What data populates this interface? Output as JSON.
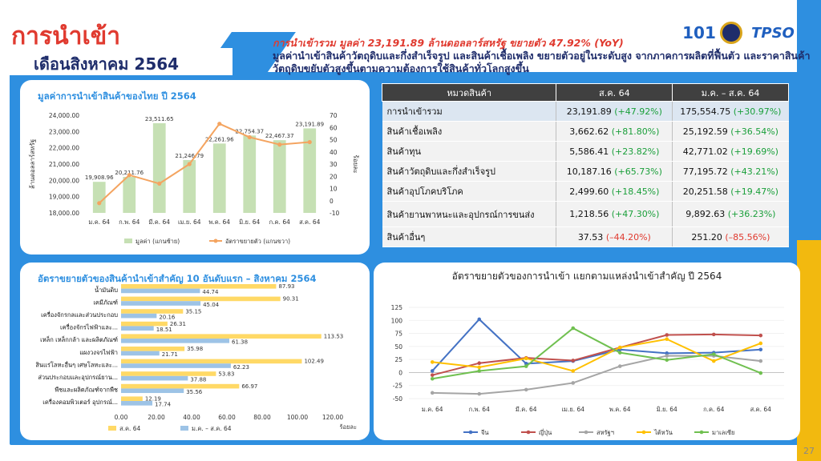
{
  "title": {
    "main": "การนำเข้า",
    "sub": "เดือนสิงหาคม 2564"
  },
  "header": {
    "highlight": "การนำเข้ารวม มูลค่า 23,191.89 ล้านดอลลาร์สหรัฐ ขยายตัว 47.92% (YoY)",
    "body": "มูลค่านำเข้าสินค้าวัตถุดิบและกึ่งสำเร็จรูป และสินค้าเชื้อเพลิง ขยายตัวอยู่ในระดับสูง จากภาคการผลิตที่ฟื้นตัว และราคาสินค้าวัตถุดิบขยับตัวสูงขึ้นตามความต้องการใช้สินค้าทั่วโลกสูงขึ้น"
  },
  "logos": [
    {
      "name": "101-logo",
      "text": "101"
    },
    {
      "name": "ministry-seal-logo",
      "text": ""
    },
    {
      "name": "tpso-logo",
      "text": "TPSO"
    }
  ],
  "page_number": "27",
  "colors": {
    "blue": "#2e8fe0",
    "yellow": "#f2b90f",
    "red": "#e03a2f",
    "navy": "#1f2d6b",
    "bar_green": "#c6e0b4",
    "line_orange": "#f4a460"
  },
  "table": {
    "headers": [
      "หมวดสินค้า",
      "ส.ค. 64",
      "ม.ค. – ส.ค. 64"
    ],
    "rows": [
      {
        "name": "การนำเข้ารวม",
        "aug_val": "23,191.89",
        "aug_chg": "(+47.92%)",
        "ytd_val": "175,554.75",
        "ytd_chg": "(+30.97%)",
        "aug_sign": "pos",
        "ytd_sign": "pos"
      },
      {
        "name": "สินค้าเชื้อเพลิง",
        "aug_val": "3,662.62",
        "aug_chg": "(+81.80%)",
        "ytd_val": "25,192.59",
        "ytd_chg": "(+36.54%)",
        "aug_sign": "pos",
        "ytd_sign": "pos"
      },
      {
        "name": "สินค้าทุน",
        "aug_val": "5,586.41",
        "aug_chg": "(+23.82%)",
        "ytd_val": "42,771.02",
        "ytd_chg": "(+19.69%)",
        "aug_sign": "pos",
        "ytd_sign": "pos"
      },
      {
        "name": "สินค้าวัตถุดิบและกึ่งสำเร็จรูป",
        "aug_val": "10,187.16",
        "aug_chg": "(+65.73%)",
        "ytd_val": "77,195.72",
        "ytd_chg": "(+43.21%)",
        "aug_sign": "pos",
        "ytd_sign": "pos"
      },
      {
        "name": "สินค้าอุปโภคบริโภค",
        "aug_val": "2,499.60",
        "aug_chg": "(+18.45%)",
        "ytd_val": "20,251.58",
        "ytd_chg": "(+19.47%)",
        "aug_sign": "pos",
        "ytd_sign": "pos"
      },
      {
        "name": "สินค้ายานพาหนะและอุปกรณ์การขนส่ง",
        "aug_val": "1,218.56",
        "aug_chg": "(+47.30%)",
        "ytd_val": "9,892.63",
        "ytd_chg": "(+36.23%)",
        "aug_sign": "pos",
        "ytd_sign": "pos"
      },
      {
        "name": "สินค้าอื่นๆ",
        "aug_val": "37.53",
        "aug_chg": "(–44.20%)",
        "ytd_val": "251.20",
        "ytd_chg": "(–85.56%)",
        "aug_sign": "neg",
        "ytd_sign": "neg"
      }
    ]
  },
  "chart_data": [
    {
      "type": "bar",
      "title": "มูลค่าการนำเข้าสินค้าของไทย ปี 2564",
      "categories": [
        "ม.ค. 64",
        "ก.พ. 64",
        "มี.ค. 64",
        "เม.ย. 64",
        "พ.ค. 64",
        "มิ.ย. 64",
        "ก.ค. 64",
        "ส.ค. 64"
      ],
      "series": [
        {
          "name": "มูลค่า (แกนซ้าย)",
          "values": [
            19908.96,
            20211.76,
            23511.65,
            21246.79,
            22261.96,
            22754.37,
            22467.37,
            23191.89
          ],
          "labels": [
            "19,908.96",
            "20,211.76",
            "23,511.65",
            "21,246.79",
            "22,261.96",
            "22,754.37",
            "22,467.37",
            "23,191.89"
          ]
        },
        {
          "name": "อัตราขยายตัว (แกนขวา)",
          "type": "line",
          "values": [
            -2,
            21,
            14,
            30,
            63,
            52,
            46,
            48
          ]
        }
      ],
      "ylabel": "ล้านดอลลาร์สหรัฐ",
      "y2label": "ร้อยละ",
      "ylim": [
        18000,
        24000
      ],
      "y2lim": [
        -10,
        70
      ],
      "yticks": [
        "18,000.00",
        "19,000.00",
        "20,000.00",
        "21,000.00",
        "22,000.00",
        "23,000.00",
        "24,000.00"
      ],
      "y2ticks": [
        "-10",
        "0",
        "10",
        "20",
        "30",
        "40",
        "50",
        "60",
        "70"
      ],
      "legend": "bottom"
    },
    {
      "type": "bar",
      "orientation": "horizontal",
      "title": "อัตราขยายตัวของสินค้านำเข้าสำคัญ 10 อันดับแรก – สิงหาคม 2564",
      "categories": [
        "น้ำมันดิบ",
        "เคมีภัณฑ์",
        "เครื่องจักรกลและส่วนประกอบ",
        "เครื่องจักรไฟฟ้าและ...",
        "เหล็ก เหล็กกล้า และผลิตภัณฑ์",
        "แผงวงจรไฟฟ้า",
        "สินแร่โลหะอื่นๆ เศษโลหะและ...",
        "ส่วนประกอบและอุปกรณ์ยาน...",
        "พืชและผลิตภัณฑ์จากพืช",
        "เครื่องคอมพิวเตอร์ อุปกรณ์..."
      ],
      "series": [
        {
          "name": "ส.ค. 64",
          "values": [
            87.93,
            90.31,
            35.15,
            26.31,
            113.53,
            35.98,
            102.49,
            53.83,
            66.97,
            12.19
          ]
        },
        {
          "name": "ม.ค. – ส.ค. 64",
          "values": [
            44.74,
            45.04,
            20.16,
            18.51,
            61.38,
            21.71,
            62.23,
            37.88,
            35.56,
            17.74
          ]
        }
      ],
      "xlabel": "ร้อยละ",
      "xlim": [
        0,
        120
      ],
      "xticks": [
        "0.00",
        "20.00",
        "40.00",
        "60.00",
        "80.00",
        "100.00",
        "120.00"
      ],
      "legend": "bottom"
    },
    {
      "type": "line",
      "title": "อัตราขยายตัวของการนำเข้า แยกตามแหล่งนำเข้าสำคัญ ปี 2564",
      "categories": [
        "ม.ค. 64",
        "ก.พ. 64",
        "มี.ค. 64",
        "เม.ย. 64",
        "พ.ค. 64",
        "มิ.ย. 64",
        "ก.ค. 64",
        "ส.ค. 64"
      ],
      "series": [
        {
          "name": "จีน",
          "color": "#4472c4",
          "values": [
            3,
            102,
            17,
            22,
            44,
            37,
            38,
            44
          ]
        },
        {
          "name": "ญี่ปุ่น",
          "color": "#c0504d",
          "values": [
            -5,
            18,
            28,
            23,
            48,
            72,
            73,
            71
          ]
        },
        {
          "name": "สหรัฐฯ",
          "color": "#a5a5a5",
          "values": [
            -39,
            -41,
            -33,
            -20,
            12,
            32,
            32,
            22
          ]
        },
        {
          "name": "ไต้หวัน",
          "color": "#ffc000",
          "values": [
            20,
            10,
            27,
            3,
            48,
            64,
            22,
            56
          ]
        },
        {
          "name": "มาเลเซีย",
          "color": "#70c050",
          "values": [
            -12,
            3,
            12,
            85,
            38,
            24,
            35,
            -1
          ]
        }
      ],
      "ylim": [
        -50,
        125
      ],
      "yticks": [
        "-50",
        "-25",
        "0",
        "25",
        "50",
        "75",
        "100",
        "125"
      ],
      "legend": "bottom"
    }
  ]
}
